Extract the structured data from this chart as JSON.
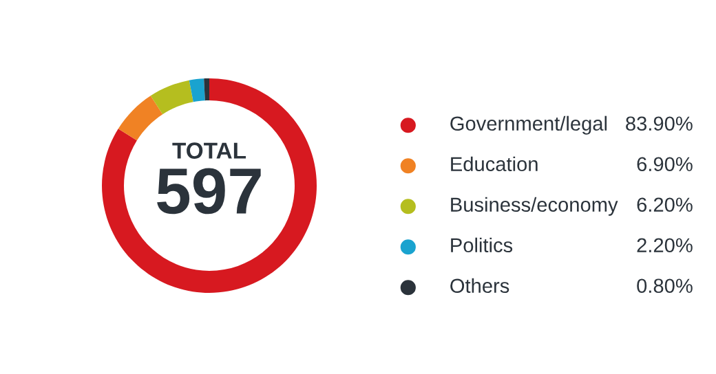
{
  "chart_data": {
    "type": "donut",
    "categories": [
      "Government/legal",
      "Education",
      "Business/economy",
      "Politics",
      "Others"
    ],
    "values": [
      83.9,
      6.9,
      6.2,
      2.2,
      0.8
    ],
    "value_labels": [
      "83.90%",
      "6.90%",
      "6.20%",
      "2.20%",
      "0.80%"
    ],
    "colors": [
      "#d71920",
      "#f08224",
      "#b5be1f",
      "#1aa3cf",
      "#2b333b"
    ],
    "annotations": [
      "TOTAL",
      "597"
    ],
    "legend": "right"
  }
}
